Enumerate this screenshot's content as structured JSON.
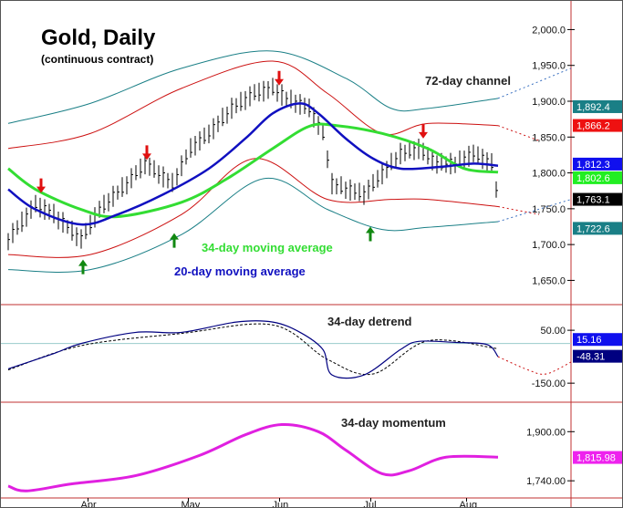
{
  "chart_data": {
    "type": "line",
    "title": "Gold, Daily",
    "subtitle": "(continuous contract)",
    "x_unit": "trading day index",
    "x_months": [
      {
        "label": "Apr",
        "day": 17.5
      },
      {
        "label": "May",
        "day": 39.5
      },
      {
        "label": "Jun",
        "day": 59.5
      },
      {
        "label": "Jul",
        "day": 79.5
      },
      {
        "label": "Aug",
        "day": 100.5
      }
    ],
    "last_day": 107,
    "colors": {
      "price": "#000000",
      "ma20": "#1010c0",
      "ma34": "#33dd33",
      "channel_outer": "#1a7f86",
      "channel_inner": "#cc1010",
      "detrend": "#000080",
      "momentum": "#e020e0",
      "axis": "#c03030",
      "forecast": "#cc1010"
    },
    "annotations": {
      "channel": "72-day channel",
      "ma34": "34-day moving average",
      "ma20": "20-day moving average",
      "detrend": "34-day detrend",
      "momentum": "34-day momentum"
    },
    "price_panel": {
      "ylim": [
        1620,
        2040
      ],
      "ticks": [
        "2,000.0",
        "1,950.0",
        "1,900.0",
        "1,850.0",
        "1,800.0",
        "1,750.0",
        "1,700.0",
        "1,650.0"
      ],
      "tick_values": [
        2000,
        1950,
        1900,
        1850,
        1800,
        1750,
        1700,
        1650
      ],
      "price": [
        [
          0,
          1707
        ],
        [
          6,
          1756
        ],
        [
          10,
          1742
        ],
        [
          16,
          1707
        ],
        [
          20,
          1749
        ],
        [
          26,
          1785
        ],
        [
          30,
          1813
        ],
        [
          36,
          1785
        ],
        [
          40,
          1834
        ],
        [
          44,
          1855
        ],
        [
          49,
          1890
        ],
        [
          54,
          1911
        ],
        [
          58,
          1918
        ],
        [
          61,
          1904
        ],
        [
          66,
          1890
        ],
        [
          69,
          1855
        ],
        [
          71,
          1785
        ],
        [
          74,
          1778
        ],
        [
          78,
          1770
        ],
        [
          81,
          1792
        ],
        [
          86,
          1827
        ],
        [
          90,
          1834
        ],
        [
          94,
          1813
        ],
        [
          98,
          1813
        ],
        [
          102,
          1827
        ],
        [
          106,
          1813
        ],
        [
          107.4,
          1763
        ]
      ],
      "ma20": [
        [
          0,
          1777
        ],
        [
          6,
          1749
        ],
        [
          16,
          1728
        ],
        [
          24,
          1742
        ],
        [
          34,
          1770
        ],
        [
          44,
          1806
        ],
        [
          52,
          1848
        ],
        [
          58,
          1883
        ],
        [
          64,
          1897
        ],
        [
          68,
          1883
        ],
        [
          74,
          1848
        ],
        [
          80,
          1820
        ],
        [
          86,
          1806
        ],
        [
          94,
          1808
        ],
        [
          102,
          1813
        ],
        [
          107.4,
          1810
        ]
      ],
      "ma34": [
        [
          0,
          1806
        ],
        [
          6,
          1777
        ],
        [
          16,
          1749
        ],
        [
          24,
          1739
        ],
        [
          38,
          1759
        ],
        [
          48,
          1792
        ],
        [
          58,
          1834
        ],
        [
          66,
          1865
        ],
        [
          72,
          1866
        ],
        [
          82,
          1855
        ],
        [
          92,
          1834
        ],
        [
          100,
          1806
        ],
        [
          107.4,
          1801
        ]
      ],
      "channel_upper": [
        [
          0,
          1869
        ],
        [
          18,
          1897
        ],
        [
          38,
          1946
        ],
        [
          58,
          1970
        ],
        [
          74,
          1932
        ],
        [
          84,
          1890
        ],
        [
          92,
          1890
        ],
        [
          107.4,
          1904
        ]
      ],
      "channel_lower": [
        [
          0,
          1665
        ],
        [
          18,
          1665
        ],
        [
          38,
          1714
        ],
        [
          56,
          1792
        ],
        [
          70,
          1749
        ],
        [
          82,
          1721
        ],
        [
          92,
          1724
        ],
        [
          107.4,
          1732
        ]
      ],
      "inner_upper": [
        [
          0,
          1834
        ],
        [
          18,
          1855
        ],
        [
          38,
          1918
        ],
        [
          58,
          1956
        ],
        [
          70,
          1911
        ],
        [
          82,
          1855
        ],
        [
          92,
          1869
        ],
        [
          107.4,
          1866
        ]
      ],
      "inner_lower": [
        [
          0,
          1686
        ],
        [
          18,
          1686
        ],
        [
          38,
          1742
        ],
        [
          54,
          1820
        ],
        [
          70,
          1763
        ],
        [
          84,
          1763
        ],
        [
          92,
          1763
        ],
        [
          107.4,
          1753
        ]
      ],
      "forecast_channel_upper": [
        [
          107.4,
          1904
        ],
        [
          123.4,
          1946
        ]
      ],
      "forecast_channel_lower": [
        [
          107.4,
          1732
        ],
        [
          123.4,
          1763
        ]
      ],
      "forecast_inner_upper": [
        [
          107.4,
          1866
        ],
        [
          116.4,
          1845
        ]
      ],
      "forecast_inner_lower": [
        [
          107.4,
          1753
        ],
        [
          116.4,
          1742
        ]
      ],
      "sell_arrows": [
        {
          "day": 7.2,
          "price": 1772
        },
        {
          "day": 30.4,
          "price": 1818
        },
        {
          "day": 59.4,
          "price": 1922
        },
        {
          "day": 91,
          "price": 1848
        }
      ],
      "buy_arrows": [
        {
          "day": 16.4,
          "price": 1679
        },
        {
          "day": 36.4,
          "price": 1716
        },
        {
          "day": 79.4,
          "price": 1725
        }
      ],
      "labels": [
        {
          "text": "1,892.4",
          "value": 1892.4,
          "color": "#1a7f86"
        },
        {
          "text": "1,866.2",
          "value": 1866.2,
          "color": "#ee1111"
        },
        {
          "text": "1,812.3",
          "value": 1812.3,
          "color": "#1010ee"
        },
        {
          "text": "1,802.6",
          "value": 1802.6,
          "color": "#22ee22"
        },
        {
          "text": "1,763.1",
          "value": 1763.1,
          "color": "#000000"
        },
        {
          "text": "1,722.6",
          "value": 1722.6,
          "color": "#1a7f86"
        }
      ]
    },
    "detrend_panel": {
      "ylim": [
        -215,
        140
      ],
      "ticks": [
        "50.00",
        "-150.00"
      ],
      "tick_values": [
        50,
        -150
      ],
      "values": [
        [
          0,
          -96
        ],
        [
          10,
          -38
        ],
        [
          16,
          0
        ],
        [
          28,
          42
        ],
        [
          38,
          42
        ],
        [
          50,
          81
        ],
        [
          58,
          81
        ],
        [
          64,
          42
        ],
        [
          69,
          -23
        ],
        [
          71,
          -119
        ],
        [
          78,
          -119
        ],
        [
          86,
          -23
        ],
        [
          90,
          8
        ],
        [
          98,
          4
        ],
        [
          105,
          -4
        ],
        [
          107.4,
          -50
        ]
      ],
      "average": [
        [
          0,
          -100
        ],
        [
          16,
          -8
        ],
        [
          38,
          38
        ],
        [
          58,
          70
        ],
        [
          70,
          -60
        ],
        [
          80,
          -115
        ],
        [
          92,
          10
        ],
        [
          107.4,
          -20
        ]
      ],
      "forecast": [
        [
          107.4,
          -50
        ],
        [
          114,
          -100
        ],
        [
          118,
          -115
        ],
        [
          123.4,
          -70
        ]
      ],
      "labels": [
        {
          "text": "15.16",
          "value": 15.16,
          "color": "#1010ee"
        },
        {
          "text": "-48.31",
          "value": -48.31,
          "color": "#000080"
        }
      ]
    },
    "momentum_panel": {
      "ylim": [
        1690,
        1990
      ],
      "ticks": [
        "1,900.00",
        "1,740.00"
      ],
      "tick_values": [
        1900,
        1740
      ],
      "values": [
        [
          0,
          1723
        ],
        [
          4,
          1707
        ],
        [
          14,
          1730
        ],
        [
          28,
          1757
        ],
        [
          42,
          1823
        ],
        [
          52,
          1890
        ],
        [
          60,
          1923
        ],
        [
          68,
          1900
        ],
        [
          74,
          1840
        ],
        [
          82,
          1763
        ],
        [
          88,
          1773
        ],
        [
          96,
          1817
        ],
        [
          107.4,
          1817
        ]
      ],
      "labels": [
        {
          "text": "1,815.98",
          "value": 1815.98,
          "color": "#ee22ee"
        }
      ]
    }
  }
}
